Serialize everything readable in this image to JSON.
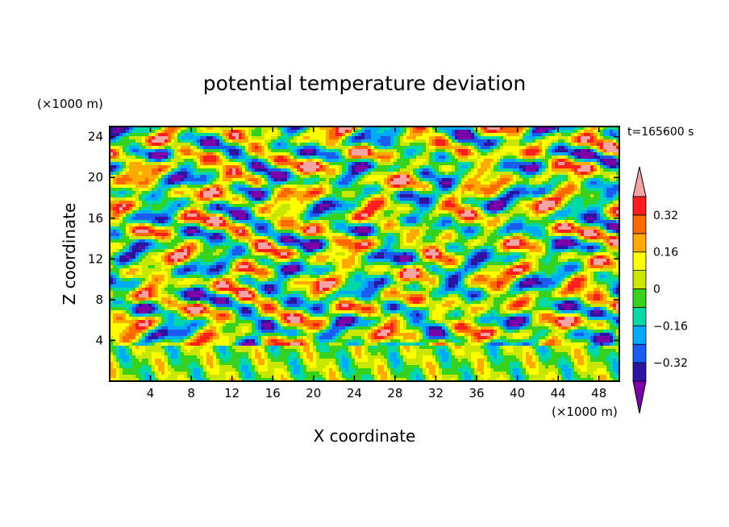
{
  "chart_data": {
    "type": "heatmap",
    "title": "potential temperature deviation",
    "time_label": "t=165600 s",
    "xlabel": "X coordinate",
    "ylabel": "Z coordinate",
    "x_unit": "(×1000 m)",
    "y_unit": "(×1000 m)",
    "xlim": [
      0,
      50
    ],
    "ylim": [
      0,
      25
    ],
    "x_ticks": [
      4,
      8,
      12,
      16,
      20,
      24,
      28,
      32,
      36,
      40,
      44,
      48
    ],
    "y_ticks": [
      4,
      8,
      12,
      16,
      20,
      24
    ],
    "colorbar": {
      "levels": [
        -0.4,
        -0.32,
        -0.24,
        -0.16,
        -0.08,
        0,
        0.08,
        0.16,
        0.24,
        0.32,
        0.4
      ],
      "tick_labels": [
        "0.32",
        "0.16",
        "0",
        "−0.16",
        "−0.32"
      ],
      "tick_values": [
        0.32,
        0.16,
        0,
        -0.16,
        -0.32
      ],
      "colors": [
        "#7a00a8",
        "#2a14a0",
        "#1a5cf0",
        "#00aaff",
        "#00d8a8",
        "#36d21e",
        "#c8e600",
        "#ffff00",
        "#ffaa00",
        "#ff6a00",
        "#ff1e1e",
        "#f5a3a3"
      ],
      "extend": "both"
    }
  }
}
